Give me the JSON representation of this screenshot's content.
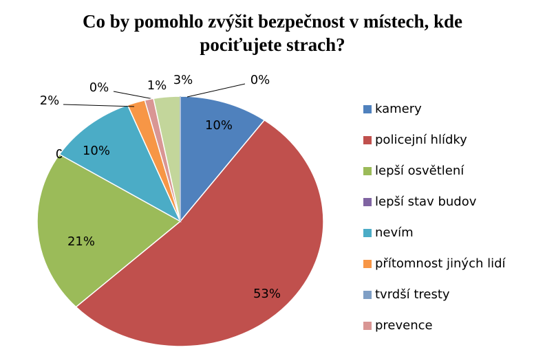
{
  "chart_data": {
    "type": "pie",
    "title": "Co by pomohlo zvýšit bezpečnost v místech, kde pociťujete strach?",
    "categories": [
      "kamery",
      "policejní hlídky",
      "lepší osvětlení",
      "lepší stav budov",
      "nevím",
      "přítomnost jiných lidí",
      "tvrdší tresty",
      "prevence",
      null,
      null
    ],
    "values": [
      10,
      53,
      21,
      0,
      10,
      2,
      0,
      1,
      3,
      0
    ],
    "value_labels": [
      "10%",
      "53%",
      "21%",
      "0%",
      "10%",
      "2%",
      "0%",
      "1%",
      "3%",
      "0%"
    ],
    "colors": [
      "#4f81bd",
      "#c0504d",
      "#9bbb59",
      "#8064a2",
      "#4bacc6",
      "#f79646",
      "#7f9fc5",
      "#d99694",
      "#c3d69b",
      "#a6b8d6"
    ],
    "legend": "right"
  }
}
